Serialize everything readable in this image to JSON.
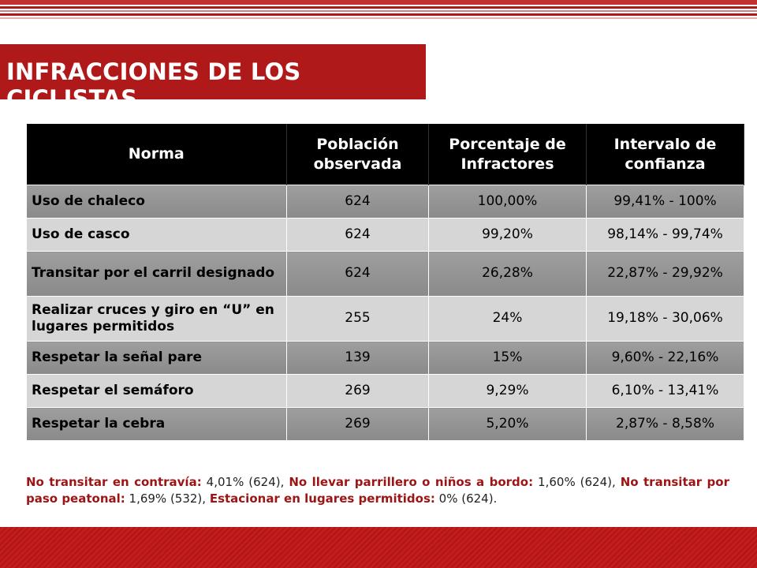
{
  "title": "INFRACCIONES DE LOS CICLISTAS",
  "colors": {
    "accent": "#b01919",
    "header_bg": "#000000",
    "row_dark": "#939393",
    "row_light": "#d6d6d6"
  },
  "table": {
    "headers": [
      "Norma",
      "Población observada",
      "Porcentaje de Infractores",
      "Intervalo de confianza"
    ],
    "rows": [
      [
        "Uso de chaleco",
        "624",
        "100,00%",
        "99,41% - 100%"
      ],
      [
        "Uso de casco",
        "624",
        "99,20%",
        "98,14% - 99,74%"
      ],
      [
        "Transitar por el carril designado",
        "624",
        "26,28%",
        "22,87% - 29,92%"
      ],
      [
        "Realizar cruces y giro en “U” en lugares permitidos",
        "255",
        "24%",
        "19,18% - 30,06%"
      ],
      [
        "Respetar la señal pare",
        "139",
        "15%",
        "9,60% - 22,16%"
      ],
      [
        "Respetar el semáforo",
        "269",
        "9,29%",
        "6,10% - 13,41%"
      ],
      [
        "Respetar la cebra",
        "269",
        "5,20%",
        "2,87% - 8,58%"
      ]
    ]
  },
  "footnote": [
    {
      "label": "No transitar en contravía:",
      "value": " 4,01% (624), "
    },
    {
      "label": "No llevar parrillero o niños a bordo:",
      "value": " 1,60% (624), "
    },
    {
      "label": "No transitar por paso peatonal:",
      "value": " 1,69% (532), "
    },
    {
      "label": "Estacionar en lugares permitidos:",
      "value": " 0% (624)."
    }
  ]
}
